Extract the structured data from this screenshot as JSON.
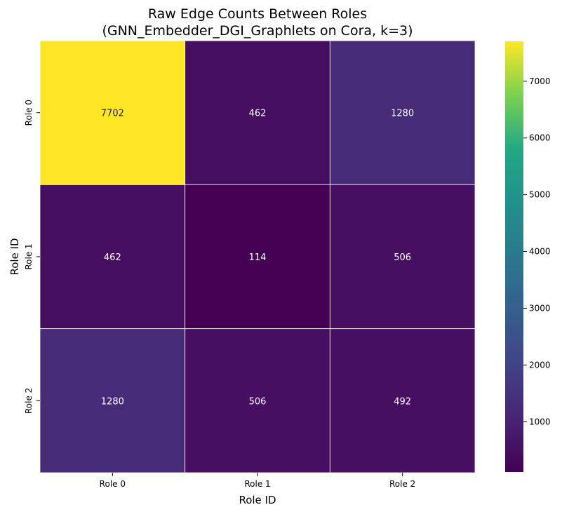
{
  "chart_data": {
    "type": "heatmap",
    "title": "Raw Edge Counts Between Roles",
    "subtitle": "(GNN_Embedder_DGI_Graphlets on Cora, k=3)",
    "xlabel": "Role ID",
    "ylabel": "Role ID",
    "x_categories": [
      "Role 0",
      "Role 1",
      "Role 2"
    ],
    "y_categories": [
      "Role 0",
      "Role 1",
      "Role 2"
    ],
    "values": [
      [
        7702,
        462,
        1280
      ],
      [
        462,
        114,
        506
      ],
      [
        1280,
        506,
        492
      ]
    ],
    "cell_labels": [
      [
        "7702",
        "462",
        "1280"
      ],
      [
        "462",
        "114",
        "506"
      ],
      [
        "1280",
        "506",
        "492"
      ]
    ],
    "colormap": "viridis",
    "vmin": 114,
    "vmax": 7702,
    "colorbar_ticks": [
      1000,
      2000,
      3000,
      4000,
      5000,
      6000,
      7000
    ],
    "colorbar_tick_labels": [
      "1000",
      "2000",
      "3000",
      "4000",
      "5000",
      "6000",
      "7000"
    ],
    "grid_line_color": "#ffffff",
    "legend": "colorbar-right"
  }
}
